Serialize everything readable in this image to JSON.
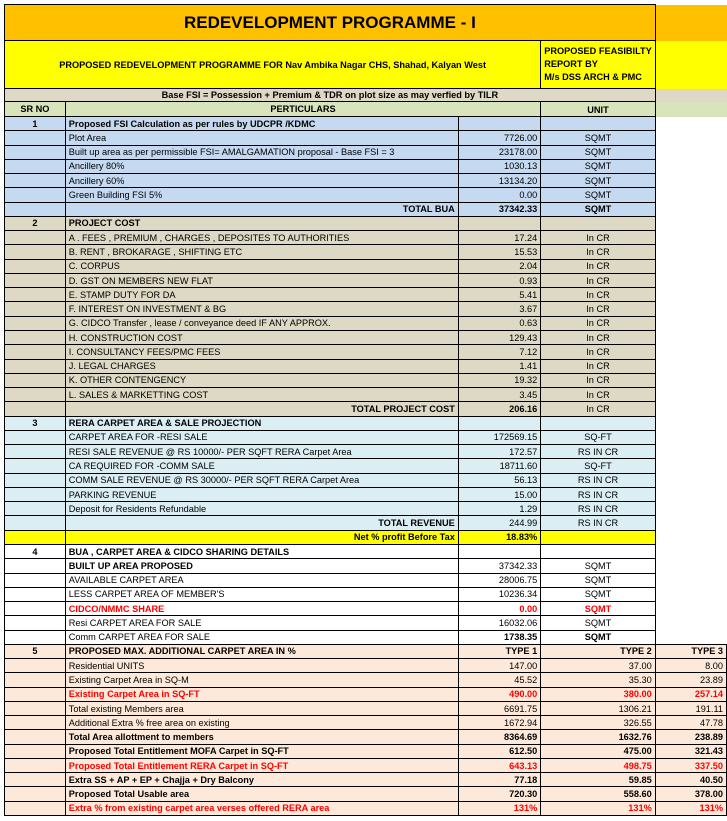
{
  "title": "REDEVELOPMENT PROGRAMME - I",
  "subtitle": "PROPOSED REDEVELOPMENT PROGRAMME FOR Nav Ambika Nagar CHS, Shahad, Kalyan West",
  "report_by": [
    "PROPOSED FEASIBILTY",
    "REPORT  BY",
    "M/s DSS ARCH & PMC"
  ],
  "base_fsi_note": "Base FSI = Possession + Premium & TDR on plot size as may verfied by TILR",
  "headers": {
    "sr": "SR NO",
    "particulars": "PERTICULARS",
    "unit": "UNIT"
  },
  "colors": {
    "title": "#ffc000",
    "highlight": "#ffff00",
    "section1": "#c5d9f1",
    "section2": "#ddd9c4",
    "section3": "#daeef3",
    "section4": "#ffffff",
    "section5": "#fde9d9",
    "red": "#ff0000"
  },
  "sections": [
    {
      "sr": "1",
      "color": "#c5d9f1",
      "rows": [
        {
          "label": "Proposed FSI Calculation as per rules by UDCPR /KDMC",
          "value": "",
          "unit": "",
          "bold": true
        },
        {
          "label": "Plot Area",
          "value": "7726.00",
          "unit": "SQMT"
        },
        {
          "label": "Built up area as per permissible FSI= AMALGAMATION  proposal - Base FSI = 3",
          "value": "23178.00",
          "unit": "SQMT"
        },
        {
          "label": "Ancillery 80%",
          "value": "1030.13",
          "unit": "SQMT"
        },
        {
          "label": "Ancillery 60%",
          "value": "13134.20",
          "unit": "SQMT"
        },
        {
          "label": "Green Building FSI 5%",
          "value": "0.00",
          "unit": "SQMT"
        },
        {
          "label": "TOTAL BUA",
          "value": "37342.33",
          "unit": "SQMT",
          "bold": true,
          "right": true,
          "boldValue": true,
          "boldUnit": true
        }
      ]
    },
    {
      "sr": "2",
      "color": "#ddd9c4",
      "rows": [
        {
          "label": "PROJECT COST",
          "value": "",
          "unit": "",
          "bold": true
        },
        {
          "label": "A . FEES , PREMIUM , CHARGES , DEPOSITES TO AUTHORITIES",
          "value": "17.24",
          "unit": "In CR"
        },
        {
          "label": "B. RENT , BROKARAGE , SHIFTING ETC",
          "value": "15.53",
          "unit": "In CR"
        },
        {
          "label": "C. CORPUS",
          "value": "2.04",
          "unit": "In CR"
        },
        {
          "label": "D. GST ON MEMBERS NEW FLAT",
          "value": "0.93",
          "unit": "In CR"
        },
        {
          "label": "E. STAMP DUTY FOR DA",
          "value": "5.41",
          "unit": "In CR"
        },
        {
          "label": "F. INTEREST ON INVESTMENT & BG",
          "value": "3.67",
          "unit": "In CR"
        },
        {
          "label": "G. CIDCO Transfer , lease / conveyance deed IF ANY APPROX.",
          "value": "0.63",
          "unit": "In CR"
        },
        {
          "label": "H. CONSTRUCTION COST",
          "value": "129.43",
          "unit": "In CR"
        },
        {
          "label": "I. CONSULTANCY FEES/PMC FEES",
          "value": "7.12",
          "unit": "In CR"
        },
        {
          "label": "J. LEGAL CHARGES",
          "value": "1.41",
          "unit": "In CR"
        },
        {
          "label": "K. OTHER CONTENGENCY",
          "value": "19.32",
          "unit": "In CR"
        },
        {
          "label": "L. SALES & MARKETTING COST",
          "value": "3.45",
          "unit": "In CR"
        },
        {
          "label": "TOTAL PROJECT COST",
          "value": "206.16",
          "unit": "In CR",
          "bold": true,
          "right": true,
          "boldValue": true
        }
      ]
    },
    {
      "sr": "3",
      "color": "#daeef3",
      "rows": [
        {
          "label": "RERA CARPET AREA & SALE PROJECTION",
          "value": "",
          "unit": "",
          "bold": true
        },
        {
          "label": "CARPET AREA  FOR -RESI  SALE",
          "value": "172569.15",
          "unit": "SQ-FT"
        },
        {
          "label": "RESI SALE  REVENUE  @ RS 10000/- PER SQFT RERA Carpet Area",
          "value": "172.57",
          "unit": "RS IN CR"
        },
        {
          "label": "CA REQUIRED FOR -COMM  SALE",
          "value": "18711.60",
          "unit": "SQ-FT"
        },
        {
          "label": "COMM SALE  REVENUE @ RS 30000/- PER SQFT RERA Carpet Area",
          "value": "56.13",
          "unit": "RS IN CR"
        },
        {
          "label": "PARKING REVENUE",
          "value": "15.00",
          "unit": "RS IN CR"
        },
        {
          "label": "Deposit for Residents Refundable",
          "value": "1.29",
          "unit": "RS IN CR"
        },
        {
          "label": "TOTAL REVENUE",
          "value": "244.99",
          "unit": "RS IN CR",
          "bold": true,
          "right": true
        },
        {
          "label": "Net % profit Before Tax",
          "value": "18.83%",
          "unit": "",
          "bold": true,
          "right": true,
          "boldValue": true,
          "color": "#ffff00"
        }
      ]
    },
    {
      "sr": "4",
      "color": "#ffffff",
      "rows": [
        {
          "label": "BUA , CARPET AREA & CIDCO SHARING DETAILS",
          "value": "",
          "unit": "",
          "bold": true
        },
        {
          "label": "BUILT UP AREA PROPOSED",
          "value": "37342.33",
          "unit": "SQMT",
          "bold": true
        },
        {
          "label": "AVAILABLE CARPET AREA",
          "value": "28006.75",
          "unit": "SQMT"
        },
        {
          "label": "LESS CARPET AREA OF MEMBER'S",
          "value": "10236.34",
          "unit": "SQMT"
        },
        {
          "label": "CIDCO/NMMC SHARE",
          "value": "0.00",
          "unit": "SQMT",
          "bold": true,
          "red": true,
          "boldValue": true,
          "boldUnit": true
        },
        {
          "label": "Resi CARPET AREA FOR SALE",
          "value": "16032.06",
          "unit": "SQMT"
        },
        {
          "label": "Comm CARPET AREA FOR SALE",
          "value": "1738.35",
          "unit": "SQMT",
          "boldValue": true,
          "boldUnit": true
        }
      ]
    }
  ],
  "section5": {
    "sr": "5",
    "color": "#fde9d9",
    "heading": "PROPOSED MAX. ADDITIONAL CARPET AREA  IN %",
    "types": [
      "TYPE 1",
      "TYPE 2",
      "TYPE 3"
    ],
    "rows": [
      {
        "label": "Residential  UNITS",
        "values": [
          "147.00",
          "37.00",
          "8.00"
        ]
      },
      {
        "label": "Existing Carpet Area in SQ-M",
        "values": [
          "45.52",
          "35.30",
          "23.89"
        ]
      },
      {
        "label": "Existing Carpet Area in SQ-FT",
        "values": [
          "490.00",
          "380.00",
          "257.14"
        ],
        "bold": true,
        "red": true
      },
      {
        "label": "Total existing Members area",
        "values": [
          "6691.75",
          "1306.21",
          "191.11"
        ]
      },
      {
        "label": "Additional Extra % free area on existing",
        "values": [
          "1672.94",
          "326.55",
          "47.78"
        ]
      },
      {
        "label": "Total Area allottment to members",
        "values": [
          "8364.69",
          "1632.76",
          "238.89"
        ],
        "bold": true
      },
      {
        "label": "Proposed Total Entitlement  MOFA Carpet in SQ-FT",
        "values": [
          "612.50",
          "475.00",
          "321.43"
        ],
        "bold": true
      },
      {
        "label": "Proposed Total Entitlement  RERA Carpet in SQ-FT",
        "values": [
          "643.13",
          "498.75",
          "337.50"
        ],
        "bold": true,
        "red": true
      },
      {
        "label": "Extra SS + AP + EP + Chajja + Dry Balcony",
        "values": [
          "77.18",
          "59.85",
          "40.50"
        ],
        "bold": true
      },
      {
        "label": "Proposed Total Usable area",
        "values": [
          "720.30",
          "558.60",
          "378.00"
        ],
        "bold": true
      },
      {
        "label": "Extra % from existing carpet area verses offered RERA area",
        "values": [
          "131%",
          "131%",
          "131%"
        ],
        "bold": true,
        "red": true
      }
    ]
  }
}
